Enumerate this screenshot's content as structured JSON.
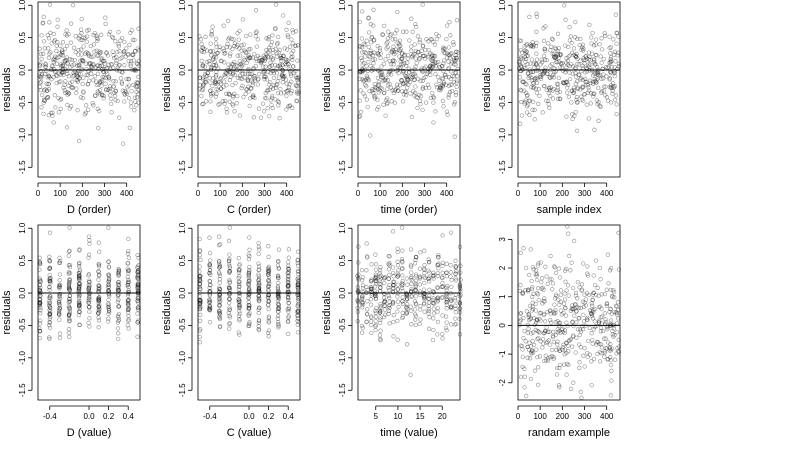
{
  "chart_data": [
    {
      "type": "scatter",
      "xlabel": "D (order)",
      "ylabel": "residuals",
      "xlim": [
        0,
        460
      ],
      "ylim": [
        -1.65,
        1.05
      ],
      "xticks": [
        0,
        100,
        200,
        300,
        400
      ],
      "yticks": [
        1.0,
        0.5,
        0.0,
        -0.5,
        -1.0,
        -1.5
      ],
      "ref_line_y": 0,
      "n": 460,
      "pattern": "order",
      "grid": false
    },
    {
      "type": "scatter",
      "xlabel": "C (order)",
      "ylabel": "residuals",
      "xlim": [
        0,
        460
      ],
      "ylim": [
        -1.65,
        1.05
      ],
      "xticks": [
        0,
        100,
        200,
        300,
        400
      ],
      "yticks": [
        1.0,
        0.5,
        0.0,
        -0.5,
        -1.0,
        -1.5
      ],
      "ref_line_y": 0,
      "n": 460,
      "pattern": "order",
      "grid": false
    },
    {
      "type": "scatter",
      "xlabel": "time (order)",
      "ylabel": "residuals",
      "xlim": [
        0,
        460
      ],
      "ylim": [
        -1.65,
        1.05
      ],
      "xticks": [
        0,
        100,
        200,
        300,
        400
      ],
      "yticks": [
        1.0,
        0.5,
        0.0,
        -0.5,
        -1.0,
        -1.5
      ],
      "ref_line_y": 0,
      "n": 460,
      "pattern": "order",
      "grid": false
    },
    {
      "type": "scatter",
      "xlabel": "sample index",
      "ylabel": "residuals",
      "xlim": [
        0,
        460
      ],
      "ylim": [
        -1.65,
        1.05
      ],
      "xticks": [
        0,
        100,
        200,
        300,
        400
      ],
      "yticks": [
        1.0,
        0.5,
        0.0,
        -0.5,
        -1.0,
        -1.5
      ],
      "ref_line_y": 0,
      "n": 460,
      "pattern": "order",
      "grid": false
    },
    {
      "type": "scatter",
      "xlabel": "D (value)",
      "ylabel": "residuals",
      "xlim": [
        -0.52,
        0.52
      ],
      "ylim": [
        -1.65,
        1.05
      ],
      "xticks": [
        -0.4,
        0.0,
        0.2,
        0.4
      ],
      "xtick_labels": [
        "-0.4",
        "0.0",
        "0.2",
        "0.4"
      ],
      "yticks": [
        1.0,
        0.5,
        0.0,
        -0.5,
        -1.0,
        -1.5
      ],
      "ref_line_y": 0,
      "n": 460,
      "pattern": "value",
      "levels": [
        -0.5,
        -0.4,
        -0.3,
        -0.2,
        -0.1,
        0.0,
        0.1,
        0.2,
        0.3,
        0.4,
        0.5
      ],
      "grid": false
    },
    {
      "type": "scatter",
      "xlabel": "C (value)",
      "ylabel": "residuals",
      "xlim": [
        -0.52,
        0.52
      ],
      "ylim": [
        -1.65,
        1.05
      ],
      "xticks": [
        -0.4,
        0.0,
        0.2,
        0.4
      ],
      "xtick_labels": [
        "-0.4",
        "0.0",
        "0.2",
        "0.4"
      ],
      "yticks": [
        1.0,
        0.5,
        0.0,
        -0.5,
        -1.0,
        -1.5
      ],
      "ref_line_y": 0,
      "n": 460,
      "pattern": "value",
      "levels": [
        -0.5,
        -0.4,
        -0.3,
        -0.2,
        -0.1,
        0.0,
        0.1,
        0.2,
        0.3,
        0.4,
        0.5
      ],
      "grid": false
    },
    {
      "type": "scatter",
      "xlabel": "time (value)",
      "ylabel": "residuals",
      "xlim": [
        1,
        24
      ],
      "ylim": [
        -1.65,
        1.05
      ],
      "xticks": [
        5,
        10,
        15,
        20
      ],
      "xtick_labels": [
        "5",
        "10",
        "15",
        "20"
      ],
      "yticks": [
        1.0,
        0.5,
        0.0,
        -0.5,
        -1.0,
        -1.5
      ],
      "ref_line_y": 0,
      "n": 460,
      "pattern": "value",
      "levels": [
        1,
        2,
        3,
        4,
        5,
        6,
        7,
        8,
        9,
        10,
        11,
        12,
        13,
        14,
        15,
        16,
        17,
        18,
        19,
        20,
        21,
        22,
        23,
        24
      ],
      "grid": false
    },
    {
      "type": "scatter",
      "xlabel": "randam example",
      "ylabel": "residuals",
      "xlim": [
        0,
        460
      ],
      "ylim": [
        -2.6,
        3.5
      ],
      "xticks": [
        0,
        100,
        200,
        300,
        400
      ],
      "yticks": [
        3,
        2,
        1,
        0,
        -1,
        -2
      ],
      "ref_line_y": 0,
      "n": 460,
      "pattern": "random",
      "grid": false
    }
  ]
}
